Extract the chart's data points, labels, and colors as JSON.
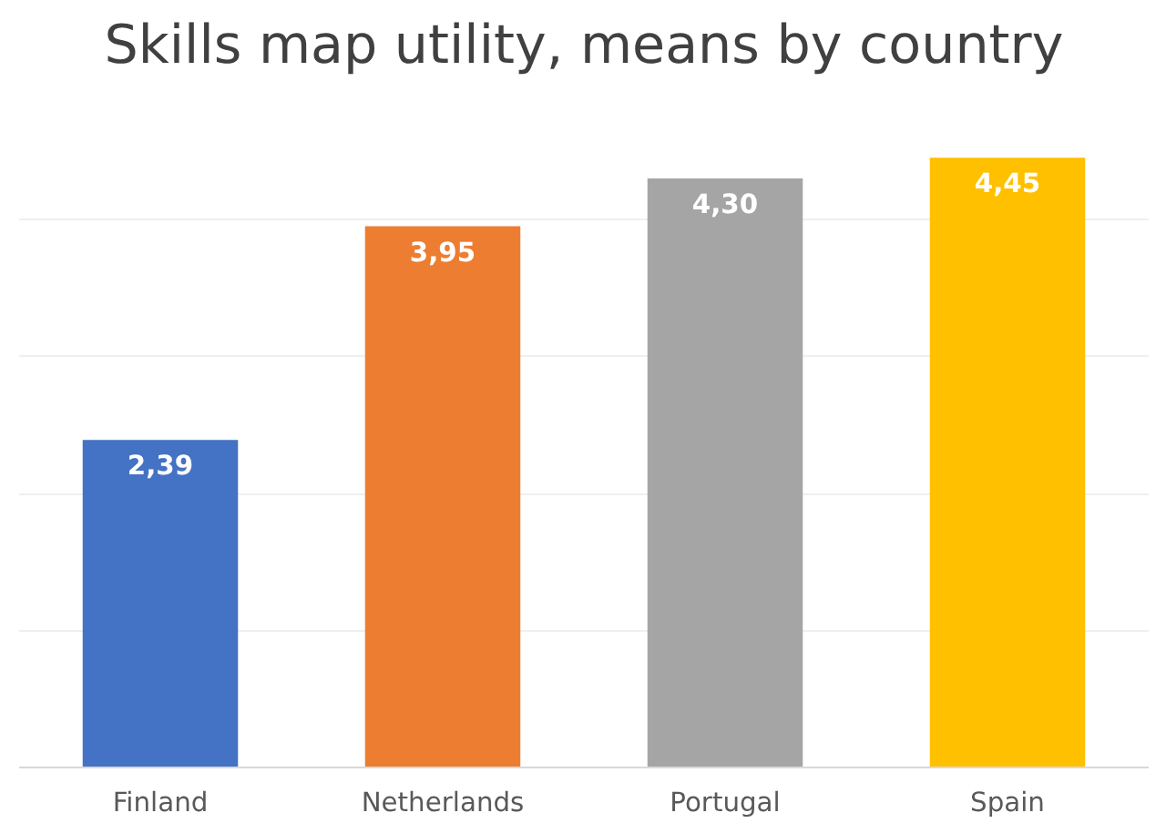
{
  "chart_data": {
    "type": "bar",
    "title": "Skills map utility, means by country",
    "categories": [
      "Finland",
      "Netherlands",
      "Portugal",
      "Spain"
    ],
    "values": [
      2.39,
      3.95,
      4.3,
      4.45
    ],
    "colors": [
      "#4472c4",
      "#ed7d31",
      "#a5a5a5",
      "#ffc000"
    ],
    "value_labels": [
      "2,39",
      "3,95",
      "4,30",
      "4,45"
    ],
    "grid": "y",
    "tick_labels": "x"
  }
}
